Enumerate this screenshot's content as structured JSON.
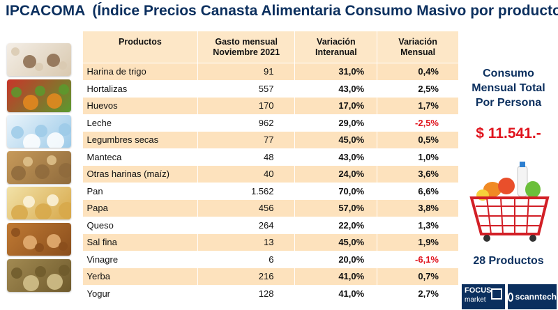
{
  "header": {
    "acronym": "IPCACOMA",
    "subtitle": "(Índice Precios Canasta Alimentaria Consumo Masivo por producto)"
  },
  "table": {
    "columns": {
      "producto": "Productos",
      "gasto_l1": "Gasto mensual",
      "gasto_l2": "Noviembre 2021",
      "inter_l1": "Variación",
      "inter_l2": "Interanual",
      "mens_l1": "Variación",
      "mens_l2": "Mensual"
    },
    "rows": [
      {
        "producto": "Harina de trigo",
        "gasto": "91",
        "interanual": "31,0%",
        "mensual": "0,4%"
      },
      {
        "producto": "Hortalizas",
        "gasto": "557",
        "interanual": "43,0%",
        "mensual": "2,5%"
      },
      {
        "producto": "Huevos",
        "gasto": "170",
        "interanual": "17,0%",
        "mensual": "1,7%"
      },
      {
        "producto": "Leche",
        "gasto": "962",
        "interanual": "29,0%",
        "mensual": "-2,5%"
      },
      {
        "producto": "Legumbres secas",
        "gasto": "77",
        "interanual": "45,0%",
        "mensual": "0,5%"
      },
      {
        "producto": "Manteca",
        "gasto": "48",
        "interanual": "43,0%",
        "mensual": "1,0%"
      },
      {
        "producto": "Otras harinas (maíz)",
        "gasto": "40",
        "interanual": "24,0%",
        "mensual": "3,6%"
      },
      {
        "producto": "Pan",
        "gasto": "1.562",
        "interanual": "70,0%",
        "mensual": "6,6%"
      },
      {
        "producto": "Papa",
        "gasto": "456",
        "interanual": "57,0%",
        "mensual": "3,8%"
      },
      {
        "producto": "Queso",
        "gasto": "264",
        "interanual": "22,0%",
        "mensual": "1,3%"
      },
      {
        "producto": "Sal fina",
        "gasto": "13",
        "interanual": "45,0%",
        "mensual": "1,9%"
      },
      {
        "producto": "Vinagre",
        "gasto": "6",
        "interanual": "20,0%",
        "mensual": "-6,1%"
      },
      {
        "producto": "Yerba",
        "gasto": "216",
        "interanual": "41,0%",
        "mensual": "0,7%"
      },
      {
        "producto": "Yogur",
        "gasto": "128",
        "interanual": "41,0%",
        "mensual": "2,7%"
      }
    ]
  },
  "summary": {
    "label_l1": "Consumo",
    "label_l2": "Mensual Total",
    "label_l3": "Por Persona",
    "amount": "$ 11.541.-",
    "products_count": "28 Productos"
  },
  "logos": {
    "focus_l1": "FOCUS",
    "focus_l2": "market",
    "scanntech": "scanntech"
  },
  "images": [
    {
      "icon": "flour-image",
      "colors": [
        "#f4eee6",
        "#d9c9b0",
        "#8a6a4c"
      ]
    },
    {
      "icon": "vegetables-image",
      "colors": [
        "#c8352a",
        "#5a9a2e",
        "#e88a1e"
      ]
    },
    {
      "icon": "milk-image",
      "colors": [
        "#eaf4fb",
        "#9ccae8",
        "#ffffff"
      ]
    },
    {
      "icon": "legumes-image",
      "colors": [
        "#c79a5a",
        "#8e6a3c",
        "#e2c48e"
      ]
    },
    {
      "icon": "eggs-image",
      "colors": [
        "#f2e2a8",
        "#d7a84a",
        "#fbf4de"
      ]
    },
    {
      "icon": "bread-image",
      "colors": [
        "#c07a34",
        "#8a4e1c",
        "#e6b275"
      ]
    },
    {
      "icon": "yerba-image",
      "colors": [
        "#a28a52",
        "#6e5a2c",
        "#d6c48e"
      ]
    }
  ],
  "colors": {
    "title": "#0b2f5e",
    "negative": "#e0141e",
    "row_band": "#fde2bd"
  }
}
